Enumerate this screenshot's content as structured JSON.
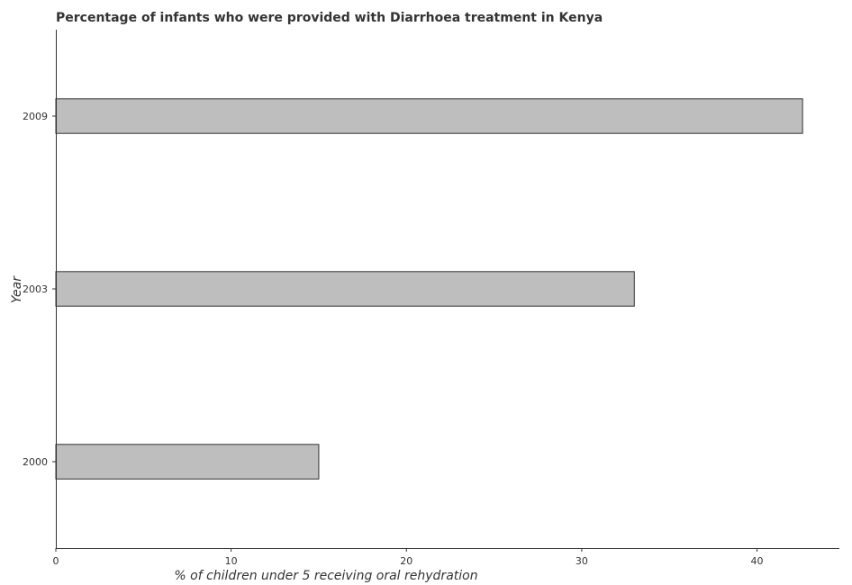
{
  "chart_data": {
    "type": "bar",
    "orientation": "horizontal",
    "title": "Percentage of infants who were provided with Diarrhoea treatment in Kenya",
    "xlabel": "% of children under 5 receiving oral rehydration",
    "ylabel": "Year",
    "categories": [
      "2000",
      "2003",
      "2009"
    ],
    "values": [
      15,
      33,
      42.6
    ],
    "xlim": [
      0,
      44.7
    ],
    "xticks": [
      0,
      10,
      20,
      30,
      40
    ],
    "grid": false,
    "bar_color": "#bebebe",
    "bar_edge_color": "#333333"
  }
}
